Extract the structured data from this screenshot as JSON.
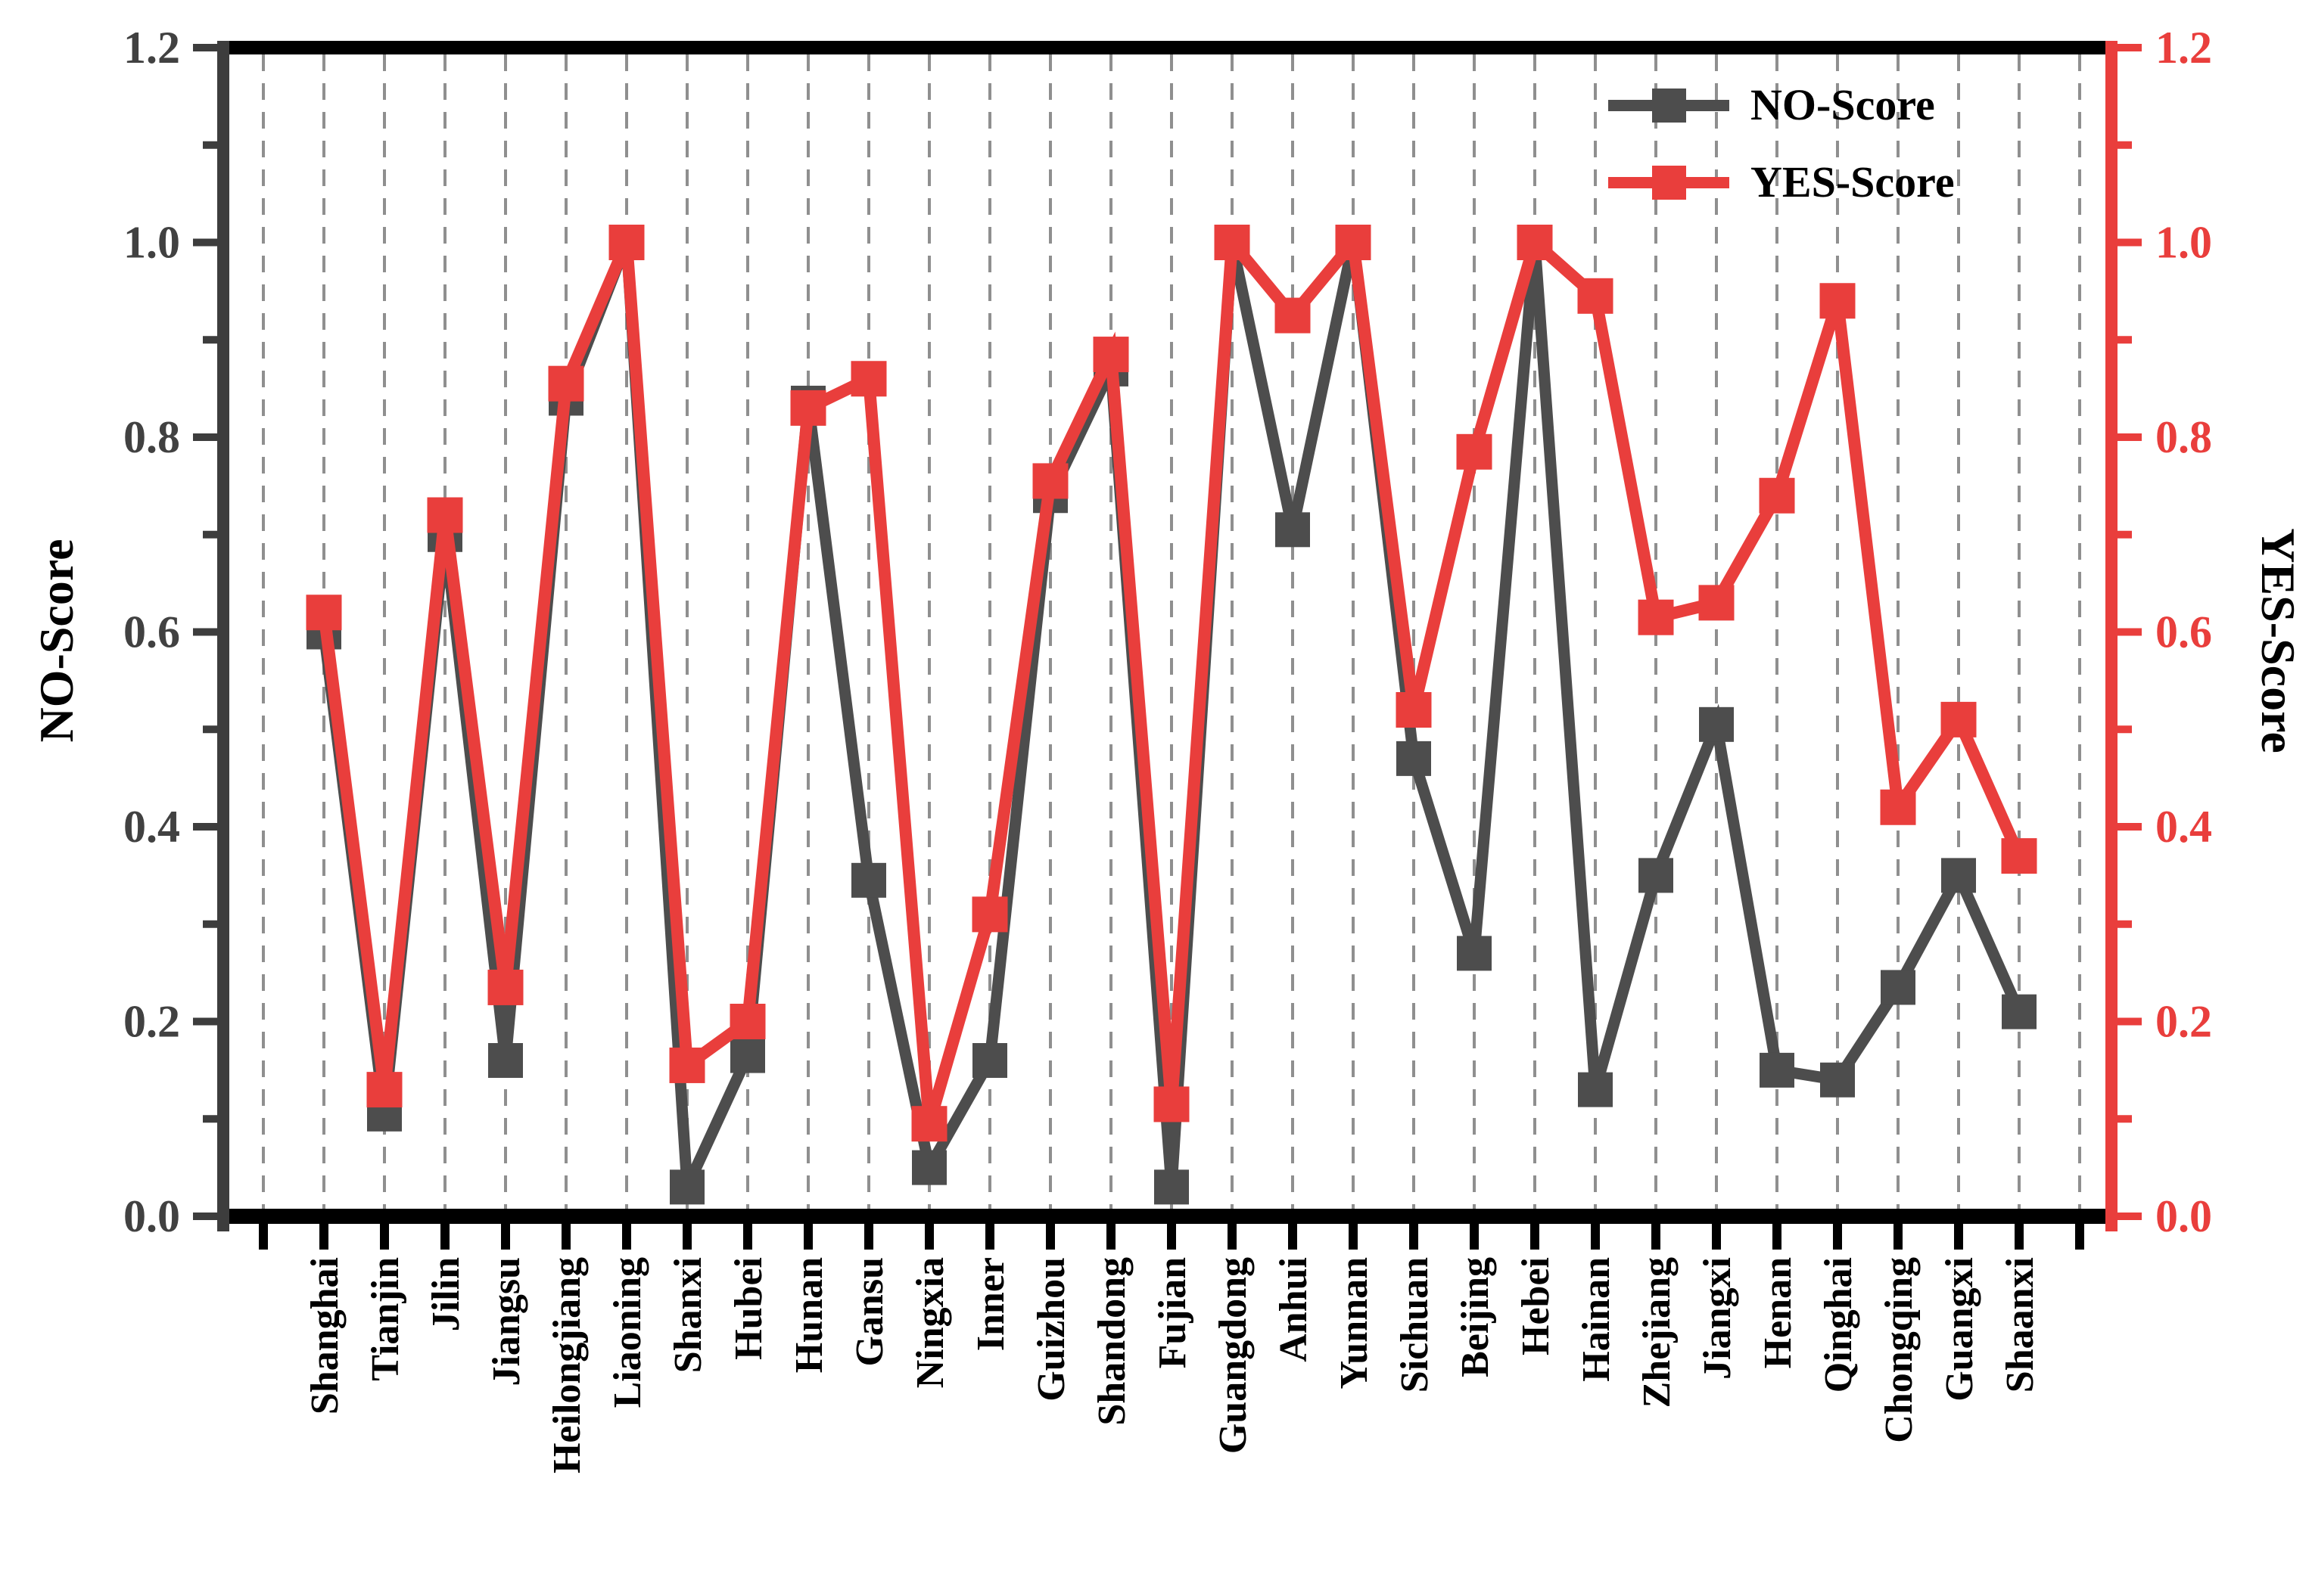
{
  "chart_data": {
    "type": "line",
    "title": "",
    "categories": [
      "Shanghai",
      "Tianjin",
      "Jilin",
      "Jiangsu",
      "Heilongjiang",
      "Liaoning",
      "Shanxi",
      "Hubei",
      "Hunan",
      "Gansu",
      "Ningxia",
      "Inner",
      "Guizhou",
      "Shandong",
      "Fujian",
      "Guangdong",
      "Anhui",
      "Yunnan",
      "Sichuan",
      "Beijing",
      "Hebei",
      "Hainan",
      "Zhejiang",
      "Jiangxi",
      "Henan",
      "Qinghai",
      "Chongqing",
      "Guangxi",
      "Shaanxi"
    ],
    "series": [
      {
        "name": "NO-Score",
        "color": "#4d4d4d",
        "values": [
          0.6,
          0.105,
          0.7,
          0.16,
          0.84,
          1.0,
          0.03,
          0.165,
          0.835,
          0.345,
          0.05,
          0.16,
          0.74,
          0.87,
          0.03,
          1.0,
          0.705,
          1.0,
          0.47,
          0.27,
          1.0,
          0.13,
          0.35,
          0.505,
          0.15,
          0.14,
          0.235,
          0.35,
          0.21
        ]
      },
      {
        "name": "YES-Score",
        "color": "#e93e3c",
        "values": [
          0.62,
          0.13,
          0.72,
          0.235,
          0.855,
          1.0,
          0.155,
          0.2,
          0.83,
          0.86,
          0.095,
          0.31,
          0.755,
          0.885,
          0.115,
          1.0,
          0.925,
          1.0,
          0.52,
          0.785,
          1.0,
          0.945,
          0.615,
          0.63,
          0.74,
          0.94,
          0.42,
          0.51,
          0.37
        ]
      }
    ],
    "left_axis": {
      "label": "NO-Score",
      "tick_labels": [
        "0.0",
        "0.2",
        "0.4",
        "0.6",
        "0.8",
        "1.0",
        "1.2"
      ],
      "range": [
        0,
        1.2
      ],
      "color": "#3d3d3d"
    },
    "right_axis": {
      "label": "YES-Score",
      "tick_labels": [
        "0.0",
        "0.2",
        "0.4",
        "0.6",
        "0.8",
        "1.0",
        "1.2"
      ],
      "range": [
        0,
        1.2
      ],
      "color": "#e93e3c"
    },
    "grid": "vertical-dashed",
    "grid_color": "#8f8f8f",
    "legend_position": "top-right",
    "xlabel": "",
    "ylabel_left": "NO-Score",
    "ylabel_right": "YES-Score"
  }
}
